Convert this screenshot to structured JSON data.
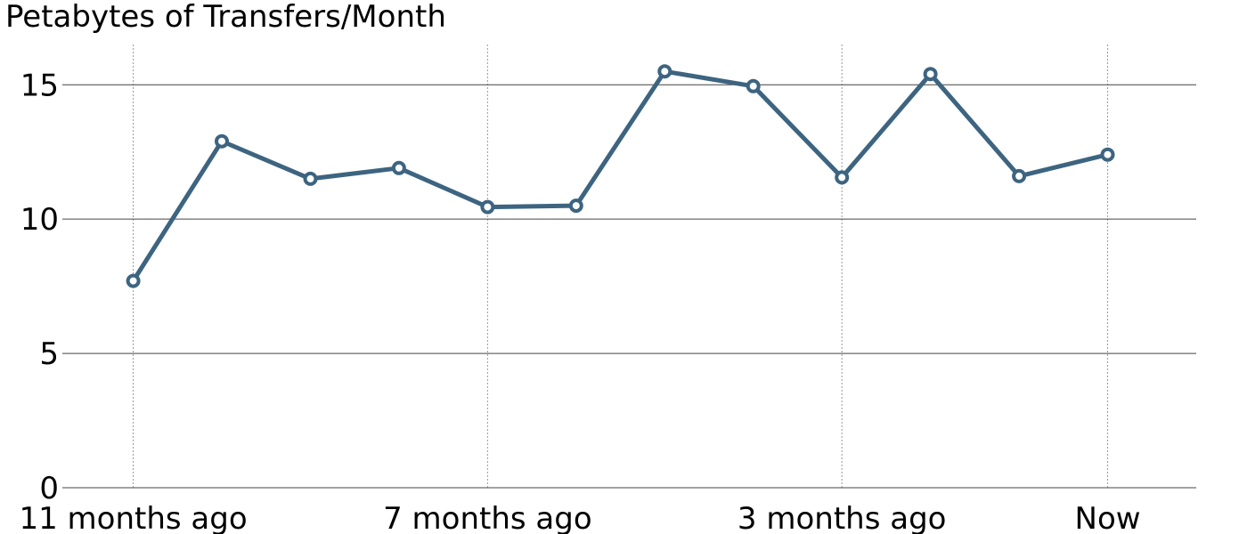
{
  "chart_data": {
    "type": "line",
    "title": "Petabytes of Transfers/Month",
    "xlabel": "",
    "ylabel": "",
    "x_tick_labels": [
      "11 months ago",
      "7 months ago",
      "3 months ago",
      "Now"
    ],
    "x_tick_months_ago": [
      11,
      7,
      3,
      0
    ],
    "xlim_months_ago": [
      11.8,
      -1.0
    ],
    "ylim": [
      0,
      16.5
    ],
    "y_ticks": [
      0,
      5,
      10,
      15
    ],
    "grid": {
      "y": "solid",
      "x": "dotted"
    },
    "legend": "none",
    "series": [
      {
        "months_ago": [
          11,
          10,
          9,
          8,
          7,
          6,
          5,
          4,
          3,
          2,
          1,
          0
        ],
        "values": [
          7.7,
          12.9,
          11.5,
          11.9,
          10.45,
          10.5,
          15.5,
          14.95,
          11.55,
          15.4,
          11.6,
          12.4
        ],
        "color": "#3d6480"
      }
    ]
  }
}
